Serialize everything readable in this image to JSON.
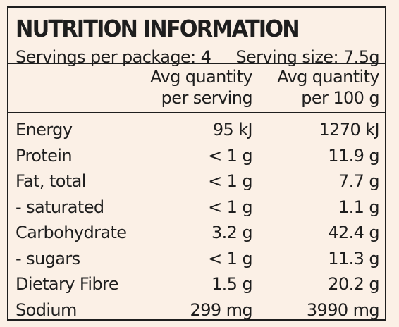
{
  "panel": {
    "title": "NUTRITION INFORMATION",
    "servings_per_package": "Servings per package: 4",
    "serving_size": "Serving size: 7.5g",
    "column_serving": [
      "Avg quantity",
      "per serving"
    ],
    "column_100g": [
      "Avg quantity",
      "per 100 g"
    ],
    "rows": [
      {
        "label": "Energy",
        "serving": "95 kJ",
        "per100": "1270 kJ"
      },
      {
        "label": "Protein",
        "serving": "< 1 g",
        "per100": "11.9 g"
      },
      {
        "label": "Fat, total",
        "serving": "< 1 g",
        "per100": "7.7 g"
      },
      {
        "label": "- saturated",
        "serving": "< 1 g",
        "per100": "1.1 g"
      },
      {
        "label": "Carbohydrate",
        "serving": "3.2 g",
        "per100": "42.4 g"
      },
      {
        "label": "- sugars",
        "serving": "< 1 g",
        "per100": "11.3 g"
      },
      {
        "label": "Dietary Fibre",
        "serving": "1.5 g",
        "per100": "20.2 g"
      },
      {
        "label": "Sodium",
        "serving": "299 mg",
        "per100": "3990 mg"
      }
    ]
  },
  "colors": {
    "background": "#fbf0e6",
    "ink": "#1e1e1e"
  }
}
